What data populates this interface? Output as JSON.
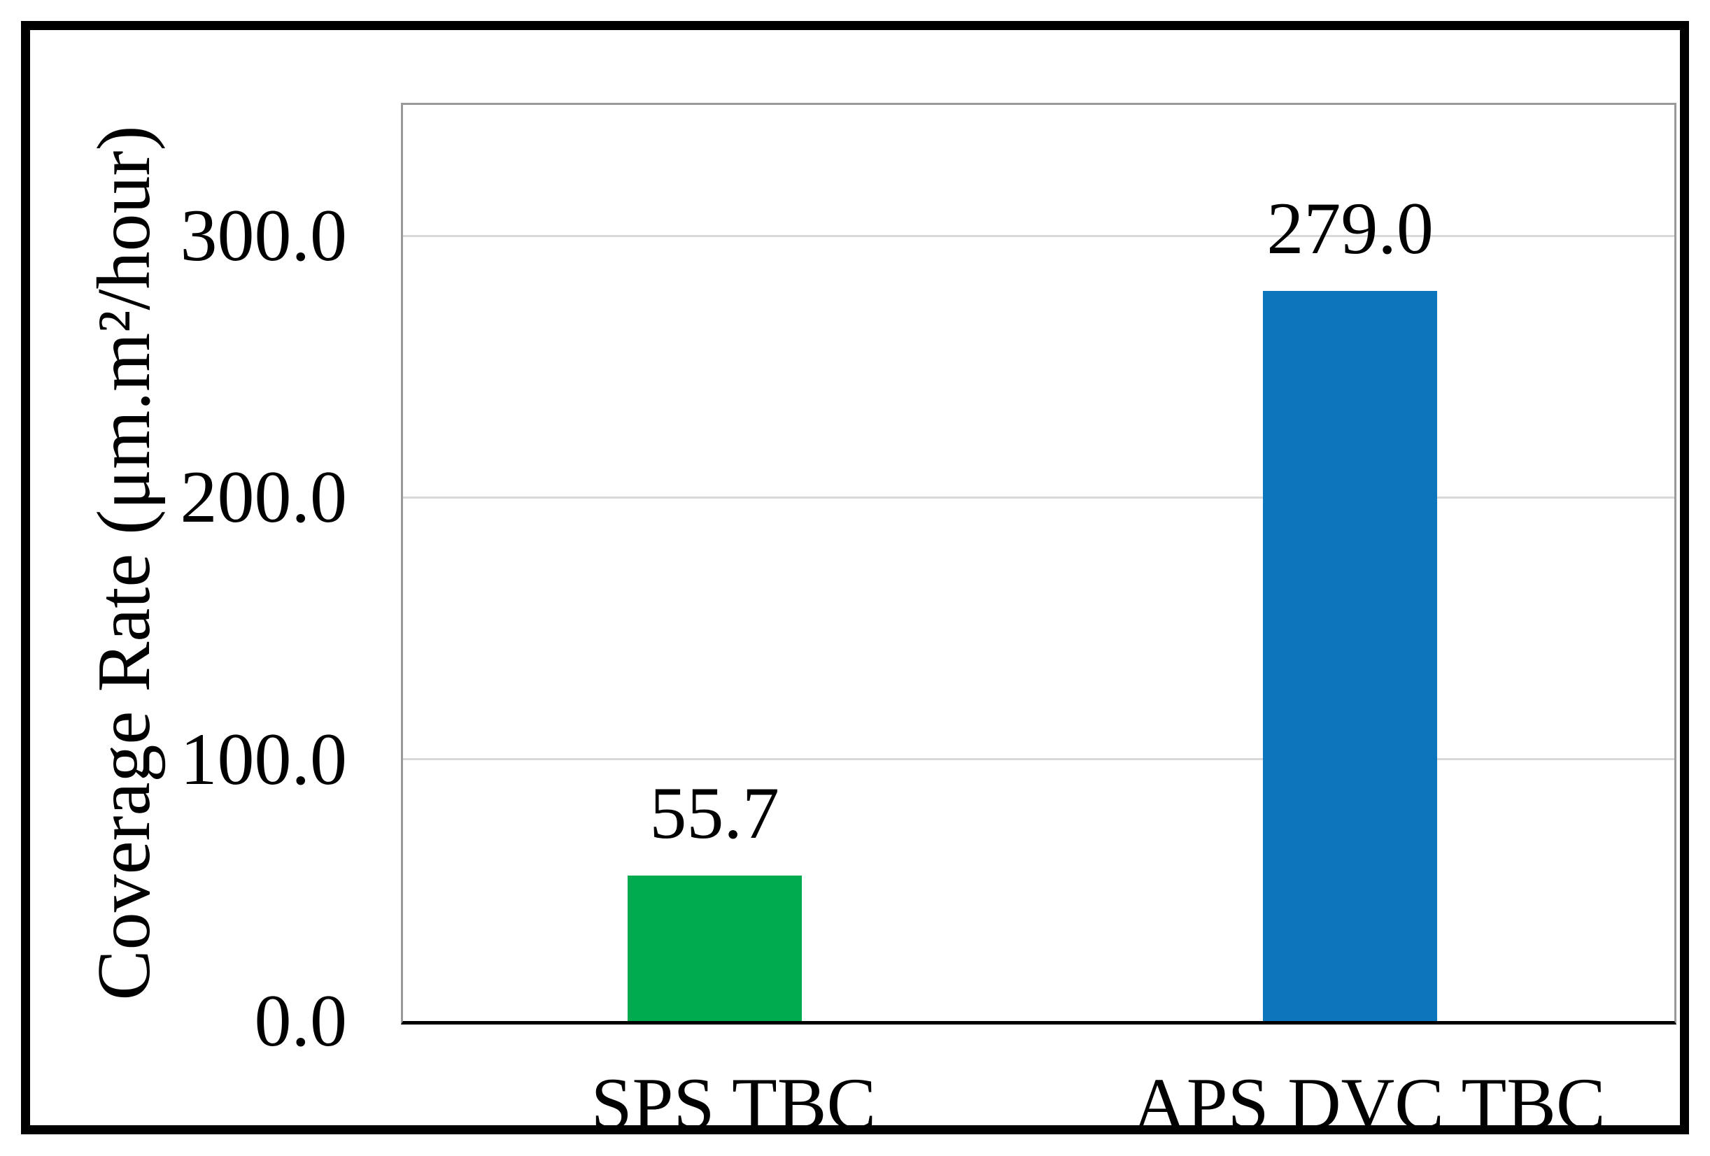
{
  "figure": {
    "background_color": "#ffffff",
    "frame_border_color": "#000000"
  },
  "chart_data": {
    "type": "bar",
    "title": "",
    "xlabel": "",
    "ylabel": "Coverage Rate (μm.m²/hour)",
    "categories": [
      "SPS TBC",
      "APS DVC TBC"
    ],
    "values": [
      55.7,
      279.0
    ],
    "data_labels": [
      "55.7",
      "279.0"
    ],
    "bar_colors": [
      "#00ab4f",
      "#0b76bb"
    ],
    "ylim": [
      0,
      350
    ],
    "ytick_values": [
      0,
      100,
      200,
      300
    ],
    "ytick_labels": [
      "0.0",
      "100.0",
      "200.0",
      "300.0"
    ],
    "grid": true,
    "gridline_color": "#d9d9d9",
    "plot_border_color": "#999999",
    "axis_line_color": "#000000",
    "text_color": "#000000",
    "legend": false
  }
}
